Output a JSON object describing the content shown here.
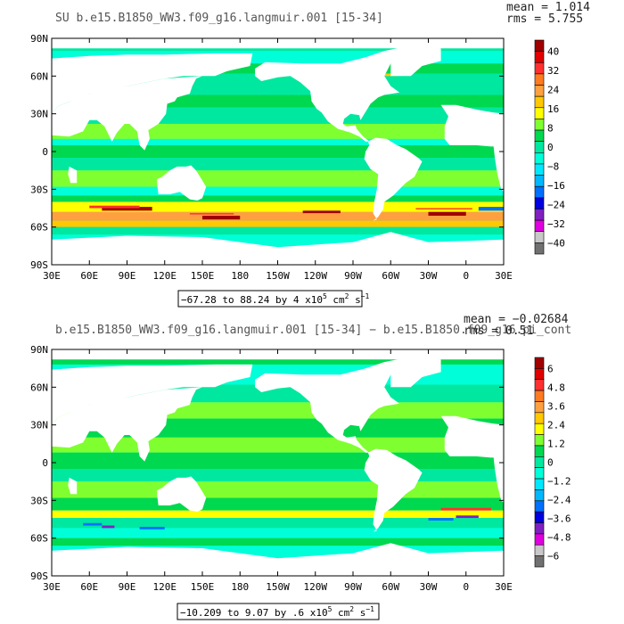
{
  "chart_data": [
    {
      "type": "heatmap",
      "title": "SU b.e15.B1850_WW3.f09_g16.langmuir.001 [15-34]",
      "stats": {
        "mean": "mean = 1.014",
        "rms": "rms = 5.755"
      },
      "x_ticks": [
        "30E",
        "60E",
        "90E",
        "120E",
        "150E",
        "180",
        "150W",
        "120W",
        "90W",
        "60W",
        "30W",
        "0",
        "30E"
      ],
      "y_ticks": [
        "90N",
        "60N",
        "30N",
        "0",
        "30S",
        "60S",
        "90S"
      ],
      "x_range": [
        30,
        390
      ],
      "y_range": [
        -90,
        90
      ],
      "range_label": {
        "prefix": "−67.28 to 88.24 by 4 x10",
        "exp": "5",
        "units": " cm",
        "exp2": "2",
        "units2": " s",
        "exp3": "−1"
      },
      "colorbar": {
        "labels": [
          "40",
          "32",
          "24",
          "16",
          "8",
          "0",
          "−8",
          "−16",
          "−24",
          "−32",
          "−40"
        ],
        "colors": [
          "#a00000",
          "#e00000",
          "#ff3030",
          "#ff7a20",
          "#ffa040",
          "#ffc800",
          "#ffff00",
          "#80ff30",
          "#00d850",
          "#00e8a0",
          "#00ffd8",
          "#00e8ff",
          "#00b8ff",
          "#0070ff",
          "#0000e0",
          "#8020c0",
          "#e000e0",
          "#c8c8c8",
          "#707070"
        ],
        "ramp_value_count": 19
      }
    },
    {
      "type": "heatmap",
      "title": "b.e15.B1850_WW3.f09_g16.langmuir.001 [15-34] − b.e15.B1850.f09_g16.pi_cont",
      "stats": {
        "mean": "mean = −0.02684",
        "rms": "rms = 0.51"
      },
      "x_ticks": [
        "30E",
        "60E",
        "90E",
        "120E",
        "150E",
        "180",
        "150W",
        "120W",
        "90W",
        "60W",
        "30W",
        "0",
        "30E"
      ],
      "y_ticks": [
        "90N",
        "60N",
        "30N",
        "0",
        "30S",
        "60S",
        "90S"
      ],
      "x_range": [
        30,
        390
      ],
      "y_range": [
        -90,
        90
      ],
      "range_label": {
        "prefix": "−10.209 to 9.07 by .6 x10",
        "exp": "5",
        "units": " cm",
        "exp2": "2",
        "units2": " s",
        "exp3": "−1"
      },
      "colorbar": {
        "labels": [
          "6",
          "4.8",
          "3.6",
          "2.4",
          "1.2",
          "0",
          "−1.2",
          "−2.4",
          "−3.6",
          "−4.8",
          "−6"
        ],
        "colors": [
          "#a00000",
          "#e00000",
          "#ff3030",
          "#ff7a20",
          "#ffa040",
          "#ffc800",
          "#ffff00",
          "#80ff30",
          "#00d850",
          "#00e8a0",
          "#00ffd8",
          "#00e8ff",
          "#00b8ff",
          "#0070ff",
          "#0000e0",
          "#8020c0",
          "#e000e0",
          "#c8c8c8",
          "#707070"
        ],
        "ramp_value_count": 19
      }
    }
  ]
}
